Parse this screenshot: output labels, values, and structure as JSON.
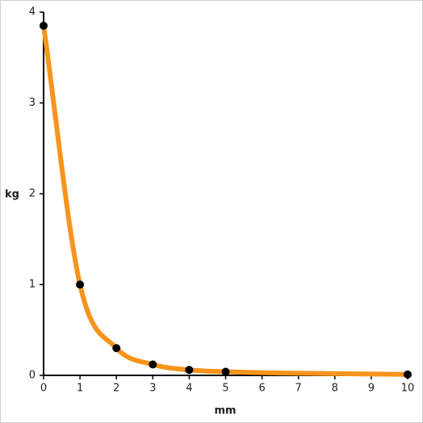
{
  "chart_data": {
    "type": "line",
    "smooth": true,
    "x_label": "mm",
    "y_label": "kg",
    "x": [
      0,
      1,
      2,
      3,
      4,
      5,
      10
    ],
    "series": [
      {
        "color": "#f7941d",
        "marker_color": "#000000",
        "values": [
          3.85,
          1.0,
          0.3,
          0.12,
          0.06,
          0.04,
          0.01
        ]
      }
    ],
    "xlim": [
      0,
      10
    ],
    "xticks": [
      0,
      1,
      2,
      3,
      4,
      5,
      6,
      7,
      8,
      9,
      10
    ],
    "ylim": [
      0,
      4
    ],
    "yticks": [
      0,
      1,
      2,
      3,
      4
    ],
    "grid": false
  }
}
